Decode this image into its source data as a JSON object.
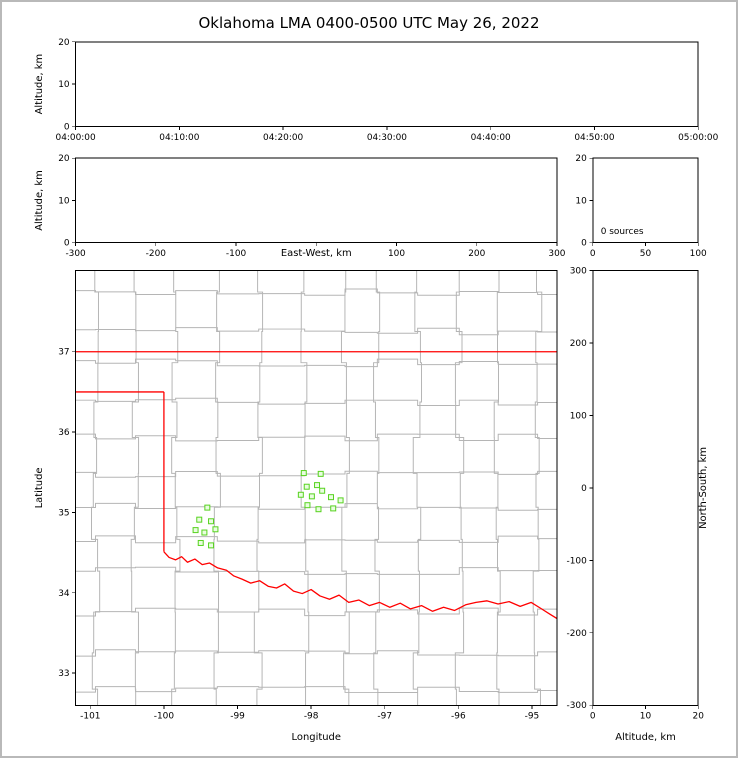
{
  "title": "Oklahoma LMA 0400-0500 UTC May 26, 2022",
  "colors": {
    "background": "#ffffff",
    "frame_border": "#b9b9b9",
    "axis": "#000000",
    "county_lines": "#b5b5b5",
    "state_border": "#ff0000",
    "event_fill": "#e9fde0",
    "event_stroke": "#56d21e"
  },
  "chart_data": [
    {
      "id": "time_height",
      "type": "scatter",
      "xlabel": "",
      "ylabel": "Altitude, km",
      "xlim": [
        0,
        3600
      ],
      "ylim": [
        0,
        20
      ],
      "xticks": [
        0,
        600,
        1200,
        1800,
        2400,
        3000,
        3600
      ],
      "xticklabels": [
        "04:00:00",
        "04:10:00",
        "04:20:00",
        "04:30:00",
        "04:40:00",
        "04:50:00",
        "05:00:00"
      ],
      "yticks": [
        0,
        10,
        20
      ],
      "points": []
    },
    {
      "id": "ew_height",
      "type": "scatter",
      "xlabel": "East-West, km",
      "ylabel": "Altitude, km",
      "xlim": [
        -300,
        300
      ],
      "ylim": [
        0,
        20
      ],
      "xticks": [
        -300,
        -200,
        -100,
        0,
        100,
        200,
        300
      ],
      "xticklabels": [
        "-300",
        "-200",
        "-100",
        "",
        "100",
        "200",
        "300"
      ],
      "yticks": [
        0,
        10,
        20
      ],
      "points": []
    },
    {
      "id": "altitude_histogram",
      "type": "bar",
      "annotation": "0 sources",
      "xlabel": "",
      "xlim": [
        0,
        100
      ],
      "ylim": [
        0,
        20
      ],
      "xticks": [
        0,
        50,
        100
      ],
      "xticklabels": [
        "0",
        "50",
        "100"
      ],
      "yticks": [
        0,
        10,
        20
      ],
      "values": []
    },
    {
      "id": "plan_view_map",
      "type": "scatter",
      "xlabel": "Longitude",
      "ylabel": "Latitude",
      "xlim": [
        -101.2,
        -94.66
      ],
      "ylim": [
        32.6,
        38.01
      ],
      "xticks": [
        -101,
        -100,
        -99,
        -98,
        -97,
        -96,
        -95
      ],
      "xticklabels": [
        "-101",
        "-100",
        "-99",
        "-98",
        "-97",
        "-96",
        "-95"
      ],
      "yticks": [
        33,
        34,
        35,
        36,
        37
      ],
      "yticklabels": [
        "33",
        "34",
        "35",
        "36",
        "37"
      ],
      "events_lon_lat": [
        [
          -98.1,
          35.49
        ],
        [
          -97.87,
          35.48
        ],
        [
          -98.06,
          35.32
        ],
        [
          -97.92,
          35.34
        ],
        [
          -98.14,
          35.22
        ],
        [
          -97.99,
          35.2
        ],
        [
          -97.85,
          35.27
        ],
        [
          -97.73,
          35.19
        ],
        [
          -98.05,
          35.09
        ],
        [
          -97.9,
          35.04
        ],
        [
          -97.6,
          35.15
        ],
        [
          -97.7,
          35.05
        ],
        [
          -99.41,
          35.06
        ],
        [
          -99.52,
          34.91
        ],
        [
          -99.36,
          34.89
        ],
        [
          -99.57,
          34.78
        ],
        [
          -99.45,
          34.75
        ],
        [
          -99.3,
          34.79
        ],
        [
          -99.5,
          34.62
        ],
        [
          -99.36,
          34.59
        ]
      ],
      "state_border_polylines": [
        [
          [
            -101.2,
            37.0
          ],
          [
            -94.66,
            37.0
          ]
        ],
        [
          [
            -101.2,
            36.5
          ],
          [
            -100.0,
            36.5
          ]
        ],
        [
          [
            -100.0,
            36.5
          ],
          [
            -100.0,
            34.51
          ]
        ],
        [
          [
            -100.0,
            34.51
          ],
          [
            -99.93,
            34.44
          ],
          [
            -99.84,
            34.41
          ],
          [
            -99.76,
            34.45
          ],
          [
            -99.68,
            34.38
          ],
          [
            -99.58,
            34.42
          ],
          [
            -99.48,
            34.35
          ],
          [
            -99.38,
            34.37
          ],
          [
            -99.27,
            34.31
          ],
          [
            -99.15,
            34.28
          ],
          [
            -99.05,
            34.21
          ],
          [
            -98.94,
            34.17
          ],
          [
            -98.82,
            34.12
          ],
          [
            -98.7,
            34.15
          ],
          [
            -98.58,
            34.08
          ],
          [
            -98.47,
            34.06
          ],
          [
            -98.36,
            34.11
          ],
          [
            -98.24,
            34.02
          ],
          [
            -98.12,
            33.99
          ],
          [
            -98.0,
            34.04
          ],
          [
            -97.88,
            33.96
          ],
          [
            -97.75,
            33.92
          ],
          [
            -97.62,
            33.97
          ],
          [
            -97.49,
            33.88
          ],
          [
            -97.35,
            33.91
          ],
          [
            -97.21,
            33.84
          ],
          [
            -97.07,
            33.88
          ],
          [
            -96.93,
            33.82
          ],
          [
            -96.79,
            33.87
          ],
          [
            -96.65,
            33.8
          ],
          [
            -96.5,
            33.84
          ],
          [
            -96.35,
            33.77
          ],
          [
            -96.2,
            33.82
          ],
          [
            -96.05,
            33.78
          ],
          [
            -95.9,
            33.85
          ],
          [
            -95.76,
            33.88
          ],
          [
            -95.61,
            33.9
          ],
          [
            -95.46,
            33.86
          ],
          [
            -95.31,
            33.89
          ],
          [
            -95.16,
            33.83
          ],
          [
            -95.01,
            33.88
          ],
          [
            -94.87,
            33.8
          ],
          [
            -94.75,
            33.73
          ],
          [
            -94.66,
            33.68
          ]
        ]
      ]
    },
    {
      "id": "ns_height",
      "type": "scatter",
      "xlabel": "Altitude, km",
      "ylabel_right": "North-South, km",
      "xlim": [
        0,
        20
      ],
      "ylim": [
        -300,
        300
      ],
      "xticks": [
        0,
        10,
        20
      ],
      "xticklabels": [
        "0",
        "10",
        "20"
      ],
      "yticks": [
        -300,
        -200,
        -100,
        0,
        100,
        200,
        300
      ],
      "yticklabels": [
        "-300",
        "-200",
        "-100",
        "0",
        "100",
        "200",
        "300"
      ],
      "points": []
    }
  ]
}
